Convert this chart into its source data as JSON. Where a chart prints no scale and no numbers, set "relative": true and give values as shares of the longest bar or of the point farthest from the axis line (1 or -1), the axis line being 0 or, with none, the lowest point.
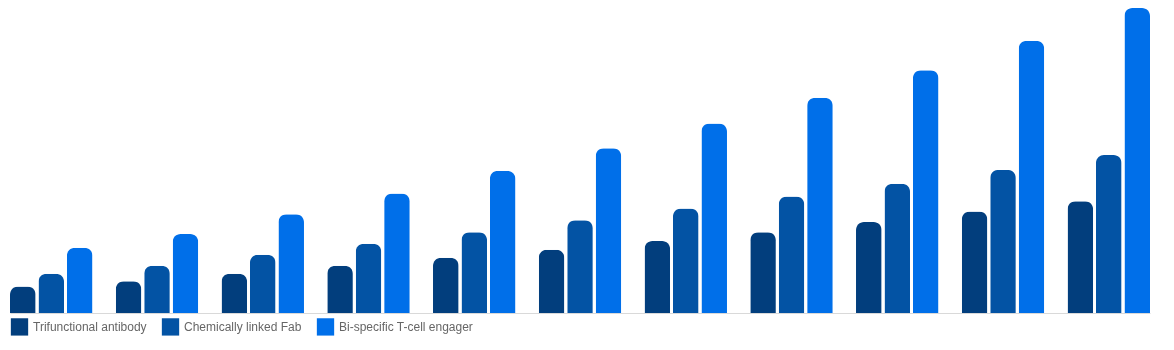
{
  "chart_data": {
    "type": "bar",
    "relative": true,
    "legend": "bottom",
    "grid": false,
    "categories": [
      null,
      null,
      null,
      null,
      null,
      null,
      null,
      null,
      null,
      null,
      null
    ],
    "series": [
      {
        "name": "Trifunctional antibody",
        "color": "#023e7d",
        "values": [
          0.087,
          0.104,
          0.129,
          0.155,
          0.181,
          0.207,
          0.236,
          0.265,
          0.298,
          0.333,
          0.366
        ]
      },
      {
        "name": "Chemically linked Fab",
        "color": "#0353a4",
        "values": [
          0.129,
          0.155,
          0.191,
          0.227,
          0.265,
          0.304,
          0.343,
          0.382,
          0.424,
          0.469,
          0.518
        ]
      },
      {
        "name": "Bi-specific T-cell engager",
        "color": "#006fe9",
        "values": [
          0.214,
          0.259,
          0.324,
          0.392,
          0.466,
          0.54,
          0.621,
          0.706,
          0.796,
          0.893,
          1
        ]
      }
    ]
  }
}
